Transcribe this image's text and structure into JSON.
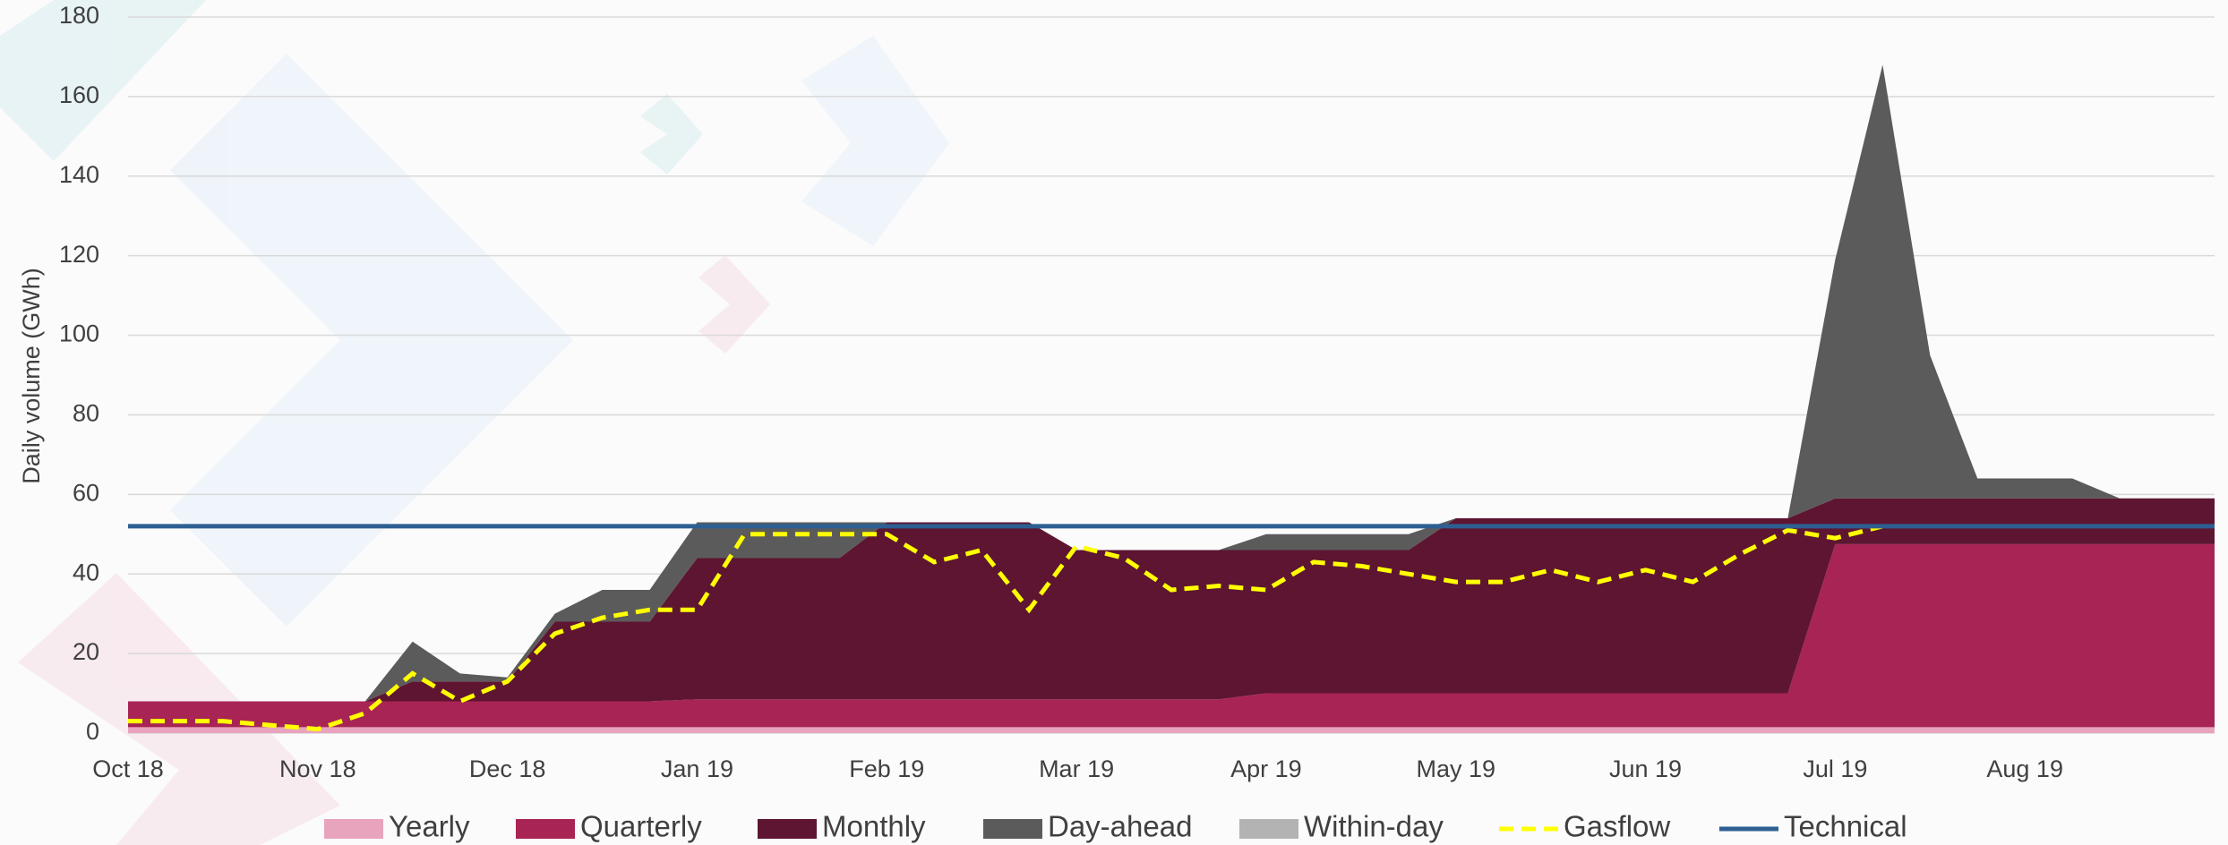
{
  "chart_data": {
    "type": "area",
    "y_label": "Daily volume (GWh)",
    "categories": [
      "Oct 18",
      null,
      null,
      null,
      "Nov 18",
      null,
      null,
      null,
      "Dec 18",
      null,
      null,
      null,
      "Jan 19",
      null,
      null,
      null,
      "Feb 19",
      null,
      null,
      null,
      "Mar 19",
      null,
      null,
      null,
      "Apr 19",
      null,
      null,
      null,
      "May 19",
      null,
      null,
      null,
      "Jun 19",
      null,
      null,
      null,
      "Jul 19",
      null,
      null,
      null,
      "Aug 19",
      null,
      null,
      null,
      null
    ],
    "ylim": [
      0,
      180
    ],
    "yticks": [
      0,
      20,
      40,
      60,
      80,
      100,
      120,
      140,
      160,
      180
    ],
    "grid": true,
    "legend": "bottom",
    "series": [
      {
        "name": "Yearly",
        "type": "area",
        "color": "#e8a3bd",
        "values": [
          1.5,
          1.5,
          1.5,
          1.5,
          1.5,
          1.5,
          1.5,
          1.5,
          1.5,
          1.5,
          1.5,
          1.5,
          1.5,
          1.5,
          1.5,
          1.5,
          1.5,
          1.5,
          1.5,
          1.5,
          1.5,
          1.5,
          1.5,
          1.5,
          1.5,
          1.5,
          1.5,
          1.5,
          1.5,
          1.5,
          1.5,
          1.5,
          1.5,
          1.5,
          1.5,
          1.5,
          1.5,
          1.5,
          1.5,
          1.5,
          1.5,
          1.5,
          1.5,
          1.5,
          1.5
        ]
      },
      {
        "name": "Quarterly",
        "type": "area",
        "color": "#a82454",
        "values": [
          6.5,
          6.5,
          6.5,
          6.5,
          6.5,
          6.5,
          6.5,
          6.5,
          6.5,
          6.5,
          6.5,
          6.5,
          7,
          7,
          7,
          7,
          7,
          7,
          7,
          7,
          7,
          7,
          7,
          7,
          8.5,
          8.5,
          8.5,
          8.5,
          8.5,
          8.5,
          8.5,
          8.5,
          8.5,
          8.5,
          8.5,
          8.5,
          46,
          46,
          46,
          46,
          46,
          46,
          46,
          46,
          46
        ]
      },
      {
        "name": "Monthly",
        "type": "area",
        "color": "#5e1531",
        "values": [
          0,
          0,
          0,
          0,
          0,
          0,
          5,
          5,
          5,
          20,
          20,
          20,
          35.5,
          35.5,
          35.5,
          35.5,
          44.5,
          44.5,
          44.5,
          44.5,
          37.5,
          37.5,
          37.5,
          37.5,
          36,
          36,
          36,
          36,
          44,
          44,
          44,
          44,
          44,
          44,
          44,
          44,
          11.5,
          11.5,
          11.5,
          11.5,
          11.5,
          11.5,
          11.5,
          11.5,
          11.5
        ]
      },
      {
        "name": "Day-ahead",
        "type": "area",
        "color": "#5b5b5b",
        "values": [
          0,
          0,
          0,
          0,
          0,
          0,
          10,
          2,
          1,
          2,
          8,
          8,
          9,
          9,
          9,
          9,
          0,
          0,
          0,
          0,
          0,
          0,
          0,
          0,
          4,
          4,
          4,
          4,
          0,
          0,
          0,
          0,
          0,
          0,
          0,
          0,
          60,
          109,
          36,
          5,
          5,
          5,
          0,
          0,
          0
        ]
      },
      {
        "name": "Within-day",
        "type": "area",
        "color": "#b3b3b3",
        "values": [
          0,
          0,
          0,
          0,
          0,
          0,
          0,
          0,
          0,
          0,
          0,
          0,
          0,
          0,
          0,
          0,
          0,
          0,
          0,
          0,
          0,
          0,
          0,
          0,
          0,
          0,
          0,
          0,
          0,
          0,
          0,
          0,
          0,
          0,
          0,
          0,
          0,
          0,
          0,
          0,
          0,
          0,
          0,
          0,
          0
        ]
      },
      {
        "name": "Gasflow",
        "type": "line",
        "dash": true,
        "color": "#ffff00",
        "values": [
          3,
          3,
          3,
          2,
          1,
          5,
          15,
          8,
          13,
          25,
          29,
          31,
          31,
          50,
          50,
          50,
          50,
          43,
          46,
          31,
          47,
          44,
          36,
          37,
          36,
          43,
          42,
          40,
          38,
          38,
          41,
          38,
          41,
          38,
          45,
          51,
          49,
          52,
          null,
          null,
          null,
          null,
          null,
          null,
          null
        ]
      },
      {
        "name": "Technical",
        "type": "line",
        "color": "#2d5f92",
        "values": [
          52,
          52,
          52,
          52,
          52,
          52,
          52,
          52,
          52,
          52,
          52,
          52,
          52,
          52,
          52,
          52,
          52,
          52,
          52,
          52,
          52,
          52,
          52,
          52,
          52,
          52,
          52,
          52,
          52,
          52,
          52,
          52,
          52,
          52,
          52,
          52,
          52,
          52,
          52,
          52,
          52,
          52,
          52,
          52,
          52
        ]
      }
    ]
  }
}
